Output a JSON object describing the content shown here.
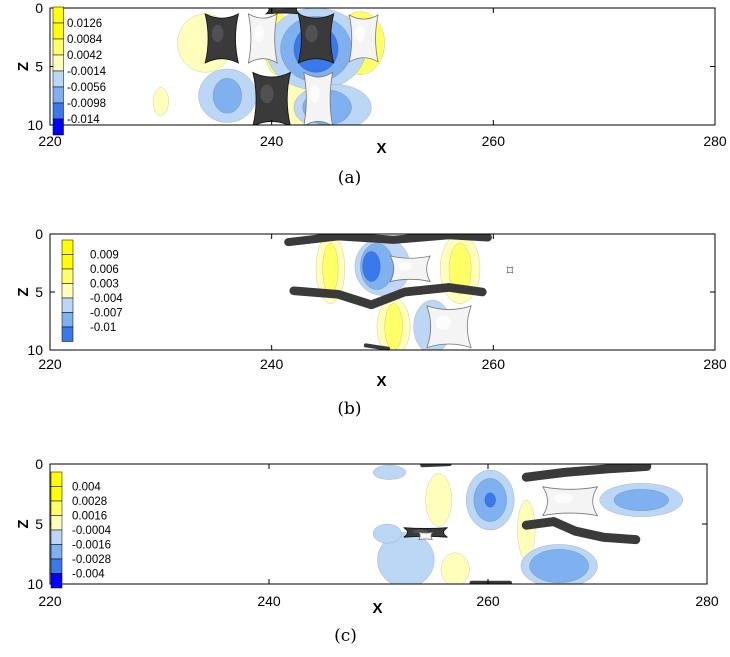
{
  "colors": {
    "pos_strong": "#ffff00",
    "pos_mid": "#ffff66",
    "pos_weak": "#ffffbb",
    "neg_weak": "#bcd6f5",
    "neg_mid": "#7fb0ef",
    "neg_strong": "#3a79ec",
    "neg_max": "#0000ff",
    "iso_dark": "#3a3a3a",
    "iso_light": "#f4f4f4"
  },
  "chart_data": [
    {
      "type": "heatmap",
      "caption": "(a)",
      "xlabel": "X",
      "ylabel": "Z",
      "xlim": [
        220,
        280
      ],
      "ylim": [
        0,
        10
      ],
      "x_ticks": [
        "220",
        "240",
        "260",
        "280"
      ],
      "y_ticks": [
        "0",
        "5",
        "10"
      ],
      "legend": [
        "0.0126",
        "0.0084",
        "0.0042",
        "-0.0014",
        "-0.0056",
        "-0.0098",
        "-0.014"
      ],
      "contours": [
        {
          "level": "pos_weak",
          "x": 234,
          "z": 3,
          "rx": 2.5,
          "rz": 2.5
        },
        {
          "level": "pos_mid",
          "x": 240.5,
          "z": 3,
          "rx": 1.2,
          "rz": 2.7
        },
        {
          "level": "pos_mid",
          "x": 248,
          "z": 3,
          "rx": 2.2,
          "rz": 2.7
        },
        {
          "level": "pos_weak",
          "x": 243,
          "z": 8,
          "rx": 2,
          "rz": 2.5
        },
        {
          "level": "pos_weak",
          "x": 230,
          "z": 8,
          "rx": 0.7,
          "rz": 1.2
        },
        {
          "level": "neg_weak",
          "x": 236,
          "z": 7.5,
          "rx": 2.6,
          "rz": 2.3
        },
        {
          "level": "neg_mid",
          "x": 236,
          "z": 7.5,
          "rx": 1.3,
          "rz": 1.5
        },
        {
          "level": "neg_weak",
          "x": 244,
          "z": 3.5,
          "rx": 4.5,
          "rz": 3.5
        },
        {
          "level": "neg_mid",
          "x": 244,
          "z": 3.5,
          "rx": 3.2,
          "rz": 2.8
        },
        {
          "level": "neg_strong",
          "x": 244,
          "z": 3.5,
          "rx": 2,
          "rz": 2
        },
        {
          "level": "neg_weak",
          "x": 245.5,
          "z": 8.5,
          "rx": 3.5,
          "rz": 2
        },
        {
          "level": "neg_mid",
          "x": 245,
          "z": 8.5,
          "rx": 2.2,
          "rz": 1.5
        }
      ],
      "isosurfaces": [
        {
          "shade": "iso_dark",
          "x": 235.5,
          "z": 2.6,
          "rx": 1.5,
          "rz": 2.1
        },
        {
          "shade": "iso_light",
          "x": 239.2,
          "z": 2.6,
          "rx": 1.3,
          "rz": 2.1
        },
        {
          "shade": "iso_dark",
          "x": 244,
          "z": 2.6,
          "rx": 1.6,
          "rz": 2.1
        },
        {
          "shade": "iso_light",
          "x": 248.3,
          "z": 2.6,
          "rx": 1.3,
          "rz": 2.0
        },
        {
          "shade": "iso_dark",
          "x": 241,
          "z": 0.1,
          "rx": 1.5,
          "rz": 0.4
        },
        {
          "shade": "iso_dark",
          "x": 240,
          "z": 7.8,
          "rx": 1.7,
          "rz": 2.3
        },
        {
          "shade": "iso_light",
          "x": 244.2,
          "z": 7.8,
          "rx": 1.3,
          "rz": 2.3
        }
      ]
    },
    {
      "type": "heatmap",
      "caption": "(b)",
      "xlabel": "X",
      "ylabel": "Z",
      "xlim": [
        220,
        280
      ],
      "ylim": [
        0,
        10
      ],
      "x_ticks": [
        "220",
        "240",
        "260",
        "280"
      ],
      "y_ticks": [
        "0",
        "5",
        "10"
      ],
      "legend": [
        "0.009",
        "0.006",
        "0.003",
        "-0.004",
        "-0.007",
        "-0.01"
      ],
      "contours": [
        {
          "level": "pos_weak",
          "x": 245.3,
          "z": 3,
          "rx": 1.3,
          "rz": 3
        },
        {
          "level": "pos_mid",
          "x": 245.3,
          "z": 3,
          "rx": 0.7,
          "rz": 2.2
        },
        {
          "level": "pos_weak",
          "x": 257,
          "z": 3,
          "rx": 1.8,
          "rz": 3
        },
        {
          "level": "pos_mid",
          "x": 257,
          "z": 3,
          "rx": 1.0,
          "rz": 2.2
        },
        {
          "level": "pos_weak",
          "x": 251,
          "z": 8,
          "rx": 1.5,
          "rz": 2.5
        },
        {
          "level": "pos_mid",
          "x": 251,
          "z": 8,
          "rx": 0.8,
          "rz": 2.0
        },
        {
          "level": "neg_weak",
          "x": 250,
          "z": 2.8,
          "rx": 2.5,
          "rz": 2.5
        },
        {
          "level": "neg_mid",
          "x": 249.5,
          "z": 2.8,
          "rx": 1.5,
          "rz": 2.0
        },
        {
          "level": "neg_strong",
          "x": 249,
          "z": 2.8,
          "rx": 0.8,
          "rz": 1.3
        },
        {
          "level": "neg_weak",
          "x": 254.5,
          "z": 8,
          "rx": 1.7,
          "rz": 2.3
        }
      ],
      "isosurfaces": [
        {
          "shade": "iso_light",
          "x": 252.5,
          "z": 3,
          "rx": 1.8,
          "rz": 1.1
        },
        {
          "shade": "iso_light",
          "x": 256,
          "z": 8,
          "rx": 2.0,
          "rz": 1.8
        },
        {
          "shade": "iso_light",
          "x": 261.5,
          "z": 3.1,
          "rx": 0.25,
          "rz": 0.25
        }
      ],
      "bands": [
        {
          "shade": "iso_dark",
          "path": [
            [
              241.5,
              0.7
            ],
            [
              246,
              0.2
            ],
            [
              251,
              0.5
            ],
            [
              256,
              0.1
            ],
            [
              259.5,
              0.3
            ]
          ],
          "w": 0.7
        },
        {
          "shade": "iso_dark",
          "path": [
            [
              242,
              4.9
            ],
            [
              246,
              5.2
            ],
            [
              249,
              6.1
            ],
            [
              252,
              5.0
            ],
            [
              256,
              4.6
            ],
            [
              259,
              5.0
            ]
          ],
          "w": 0.75
        },
        {
          "shade": "iso_dark",
          "path": [
            [
              248.5,
              9.6
            ],
            [
              250.5,
              9.9
            ]
          ],
          "w": 0.35
        }
      ]
    },
    {
      "type": "heatmap",
      "caption": "(c)",
      "xlabel": "X",
      "ylabel": "Z",
      "xlim": [
        220,
        280
      ],
      "ylim": [
        0,
        10
      ],
      "x_ticks": [
        "220",
        "240",
        "260",
        "280"
      ],
      "y_ticks": [
        "0",
        "5",
        "10"
      ],
      "legend": [
        "0.004",
        "0.0028",
        "0.0016",
        "-0.0004",
        "-0.0016",
        "-0.0028",
        "-0.004"
      ],
      "contours": [
        {
          "level": "pos_weak",
          "x": 255.5,
          "z": 3,
          "rx": 1.2,
          "rz": 2.2
        },
        {
          "level": "pos_weak",
          "x": 257,
          "z": 8.8,
          "rx": 1.3,
          "rz": 1.4
        },
        {
          "level": "pos_weak",
          "x": 263.5,
          "z": 5.5,
          "rx": 0.8,
          "rz": 2.5
        },
        {
          "level": "neg_weak",
          "x": 252.5,
          "z": 8,
          "rx": 2.6,
          "rz": 2.3
        },
        {
          "level": "neg_weak",
          "x": 260.2,
          "z": 3,
          "rx": 2.2,
          "rz": 2.5
        },
        {
          "level": "neg_mid",
          "x": 260.2,
          "z": 3,
          "rx": 1.5,
          "rz": 1.8
        },
        {
          "level": "neg_strong",
          "x": 260.2,
          "z": 3,
          "rx": 0.5,
          "rz": 0.6
        },
        {
          "level": "neg_weak",
          "x": 266.5,
          "z": 8.5,
          "rx": 3.5,
          "rz": 1.8
        },
        {
          "level": "neg_mid",
          "x": 266.5,
          "z": 8.5,
          "rx": 2.7,
          "rz": 1.4
        },
        {
          "level": "neg_weak",
          "x": 274,
          "z": 3,
          "rx": 3.8,
          "rz": 1.4
        },
        {
          "level": "neg_mid",
          "x": 274,
          "z": 3,
          "rx": 2.5,
          "rz": 0.9
        },
        {
          "level": "neg_weak",
          "x": 251,
          "z": 0.7,
          "rx": 1.5,
          "rz": 0.6
        },
        {
          "level": "neg_weak",
          "x": 250.8,
          "z": 5.8,
          "rx": 1.3,
          "rz": 0.8
        }
      ],
      "isosurfaces": [
        {
          "shade": "iso_light",
          "x": 267.5,
          "z": 3.1,
          "rx": 2.5,
          "rz": 1.2
        },
        {
          "shade": "iso_dark",
          "x": 254.3,
          "z": 5.7,
          "rx": 2.0,
          "rz": 0.4
        },
        {
          "shade": "iso_light",
          "x": 254.3,
          "z": 6.0,
          "rx": 0.6,
          "rz": 0.3
        }
      ],
      "bands": [
        {
          "shade": "iso_dark",
          "path": [
            [
              254,
              0.1
            ],
            [
              256.5,
              0.0
            ]
          ],
          "w": 0.35
        },
        {
          "shade": "iso_dark",
          "path": [
            [
              263.5,
              1.1
            ],
            [
              267,
              0.7
            ],
            [
              271,
              0.4
            ],
            [
              274.5,
              0.2
            ]
          ],
          "w": 0.75
        },
        {
          "shade": "iso_dark",
          "path": [
            [
              263.5,
              5.1
            ],
            [
              266,
              4.8
            ],
            [
              268,
              5.6
            ],
            [
              270.5,
              6.1
            ],
            [
              273.5,
              6.3
            ]
          ],
          "w": 0.75
        },
        {
          "shade": "iso_dark",
          "path": [
            [
              258.5,
              9.9
            ],
            [
              262,
              9.9
            ]
          ],
          "w": 0.35
        }
      ]
    }
  ]
}
